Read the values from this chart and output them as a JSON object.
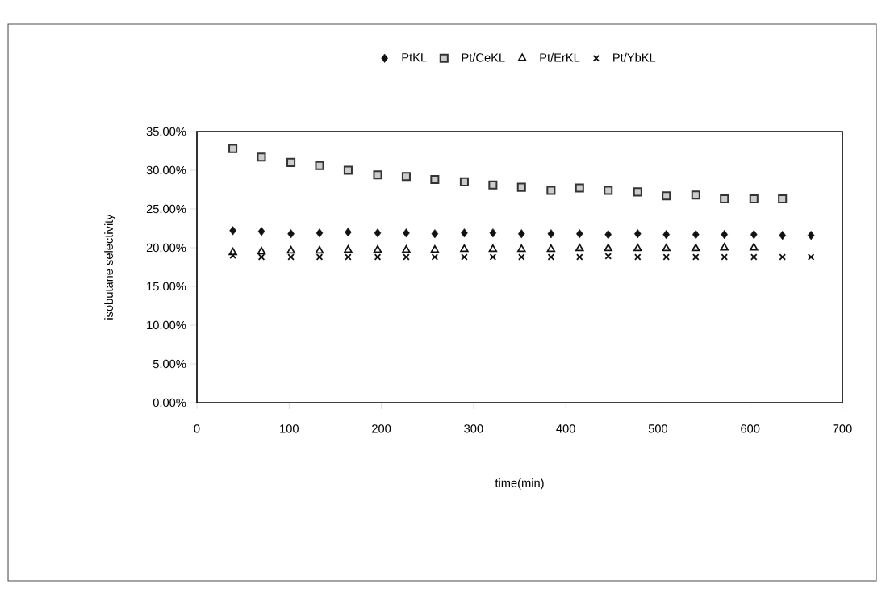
{
  "chart_data": {
    "type": "scatter",
    "xlabel": "time(min)",
    "ylabel": "isobutane selectivity",
    "legend": "top",
    "grid": false,
    "xlim": [
      0,
      700
    ],
    "xticks": [
      0,
      100,
      200,
      300,
      400,
      500,
      600,
      700
    ],
    "ylim": [
      0,
      35
    ],
    "yticks": [
      {
        "value": 0,
        "label": "0.00%"
      },
      {
        "value": 5,
        "label": "5.00%"
      },
      {
        "value": 10,
        "label": "10.00%"
      },
      {
        "value": 15,
        "label": "15.00%"
      },
      {
        "value": 20,
        "label": "20.00%"
      },
      {
        "value": 25,
        "label": "25.00%"
      },
      {
        "value": 30,
        "label": "30.00%"
      },
      {
        "value": 35,
        "label": "35.00%"
      }
    ],
    "series": [
      {
        "name": "PtKL",
        "color": "#111111",
        "marker": "diamond",
        "x": [
          39,
          70,
          102,
          133,
          164,
          196,
          227,
          258,
          290,
          321,
          352,
          384,
          415,
          446,
          478,
          509,
          541,
          572,
          604,
          635,
          666
        ],
        "values": [
          22.2,
          22.1,
          21.8,
          21.9,
          22.0,
          21.9,
          21.9,
          21.8,
          21.9,
          21.9,
          21.8,
          21.8,
          21.8,
          21.7,
          21.8,
          21.7,
          21.7,
          21.7,
          21.7,
          21.6,
          21.6
        ]
      },
      {
        "name": "Pt/CeKL",
        "color": "#333333",
        "marker": "square",
        "x": [
          39,
          70,
          102,
          133,
          164,
          196,
          227,
          258,
          290,
          321,
          352,
          384,
          415,
          446,
          478,
          509,
          541,
          572,
          604,
          635
        ],
        "values": [
          32.8,
          31.7,
          31.0,
          30.6,
          30.0,
          29.4,
          29.2,
          28.8,
          28.5,
          28.1,
          27.8,
          27.4,
          27.7,
          27.4,
          27.2,
          26.7,
          26.8,
          26.3,
          26.3,
          26.3
        ]
      },
      {
        "name": "Pt/ErKL",
        "color": "#111111",
        "marker": "triangle",
        "x": [
          39,
          70,
          102,
          133,
          164,
          196,
          227,
          258,
          290,
          321,
          352,
          384,
          415,
          446,
          478,
          509,
          541,
          572,
          604
        ],
        "values": [
          19.4,
          19.5,
          19.6,
          19.6,
          19.7,
          19.7,
          19.7,
          19.7,
          19.8,
          19.8,
          19.8,
          19.8,
          19.9,
          19.9,
          19.9,
          19.9,
          19.9,
          20.0,
          20.0
        ]
      },
      {
        "name": "Pt/YbKL",
        "color": "#111111",
        "marker": "cross",
        "x": [
          39,
          70,
          102,
          133,
          164,
          196,
          227,
          258,
          290,
          321,
          352,
          384,
          415,
          446,
          478,
          509,
          541,
          572,
          604,
          635,
          666
        ],
        "values": [
          19.0,
          18.8,
          18.8,
          18.8,
          18.8,
          18.8,
          18.8,
          18.8,
          18.8,
          18.8,
          18.8,
          18.8,
          18.8,
          18.9,
          18.8,
          18.8,
          18.8,
          18.8,
          18.8,
          18.8,
          18.8
        ]
      }
    ]
  }
}
